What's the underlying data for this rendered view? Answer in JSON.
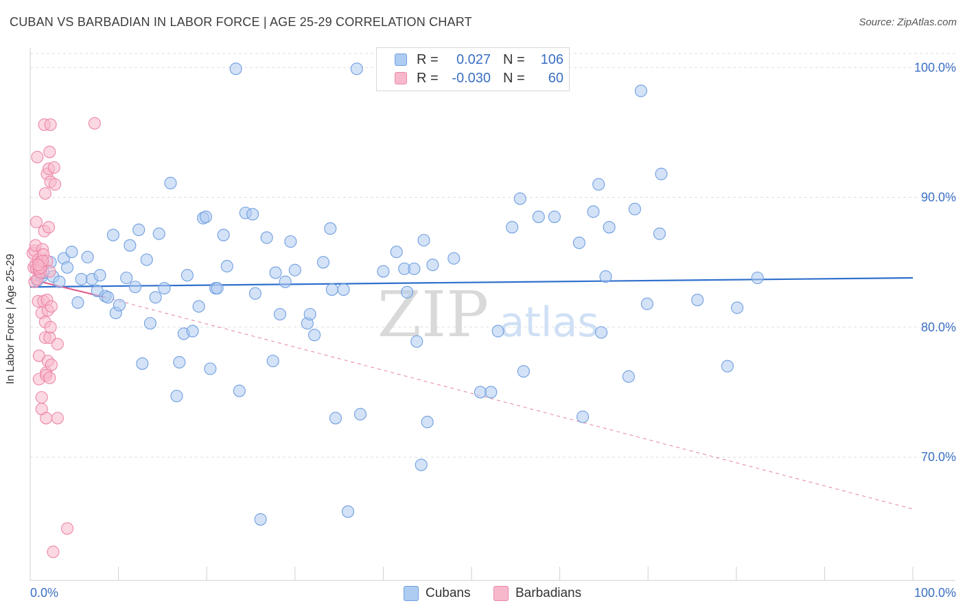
{
  "title": "CUBAN VS BARBADIAN IN LABOR FORCE | AGE 25-29 CORRELATION CHART",
  "source": "Source: ZipAtlas.com",
  "watermark": {
    "zip": "ZIP",
    "atlas": "atlas"
  },
  "legend": {
    "rows": [
      {
        "r_label": "R =",
        "r_value": "0.027",
        "n_label": "N =",
        "n_value": "106"
      },
      {
        "r_label": "R =",
        "r_value": "-0.030",
        "n_label": "N =",
        "n_value": "60"
      }
    ]
  },
  "bottom_legend": {
    "series1": "Cubans",
    "series2": "Barbadians"
  },
  "colors": {
    "cuban_fill": "#aecbf1",
    "cuban_stroke": "#6f9ee0",
    "cuban_line": "#2f6fcc",
    "barb_fill": "#f7b8cb",
    "barb_stroke": "#ec87a8",
    "barb_line": "#e0608a",
    "grid": "#dddddd",
    "axis_text": "#3a6fc4"
  },
  "chart_data": {
    "type": "scatter",
    "title": "CUBAN VS BARBADIAN IN LABOR FORCE | AGE 25-29 CORRELATION CHART",
    "xlabel": "",
    "ylabel": "In Labor Force | Age 25-29",
    "xlim": [
      0,
      100
    ],
    "ylim": [
      60.5,
      101.5
    ],
    "x_tick_labels": [
      "0.0%",
      "100.0%"
    ],
    "y_ticks": [
      70,
      80,
      90,
      100
    ],
    "y_tick_labels": [
      "70.0%",
      "80.0%",
      "90.0%",
      "100.0%"
    ],
    "grid": true,
    "series": [
      {
        "name": "Cubans",
        "R": 0.027,
        "N": 106,
        "trend": {
          "x": [
            0,
            100
          ],
          "y": [
            83.1,
            83.8
          ]
        },
        "points": [
          [
            0.8,
            83.6
          ],
          [
            1.0,
            84.5
          ],
          [
            1.1,
            84.1
          ],
          [
            1.2,
            84.3
          ],
          [
            1.2,
            84.4
          ],
          [
            1.3,
            83.9
          ],
          [
            1.5,
            84.2
          ],
          [
            2.3,
            85.0
          ],
          [
            2.6,
            83.9
          ],
          [
            3.3,
            83.5
          ],
          [
            3.8,
            85.3
          ],
          [
            4.2,
            84.6
          ],
          [
            4.7,
            85.8
          ],
          [
            5.4,
            81.9
          ],
          [
            5.8,
            83.7
          ],
          [
            6.5,
            85.4
          ],
          [
            7.0,
            83.7
          ],
          [
            7.6,
            82.8
          ],
          [
            7.9,
            84.0
          ],
          [
            8.5,
            82.4
          ],
          [
            8.8,
            82.3
          ],
          [
            9.4,
            87.1
          ],
          [
            9.7,
            81.1
          ],
          [
            10.1,
            81.7
          ],
          [
            10.9,
            83.8
          ],
          [
            11.3,
            86.3
          ],
          [
            11.9,
            83.1
          ],
          [
            12.3,
            87.5
          ],
          [
            12.7,
            77.2
          ],
          [
            13.2,
            85.2
          ],
          [
            13.6,
            80.3
          ],
          [
            14.2,
            82.3
          ],
          [
            14.6,
            87.2
          ],
          [
            15.2,
            83.0
          ],
          [
            15.9,
            91.1
          ],
          [
            16.6,
            74.7
          ],
          [
            16.9,
            77.3
          ],
          [
            17.4,
            79.5
          ],
          [
            17.8,
            84.0
          ],
          [
            18.4,
            79.7
          ],
          [
            19.1,
            81.6
          ],
          [
            19.6,
            88.4
          ],
          [
            19.9,
            88.5
          ],
          [
            20.4,
            76.8
          ],
          [
            21.0,
            83.0
          ],
          [
            21.2,
            83.0
          ],
          [
            21.9,
            87.1
          ],
          [
            22.3,
            84.7
          ],
          [
            23.3,
            99.9
          ],
          [
            23.7,
            75.1
          ],
          [
            24.4,
            88.8
          ],
          [
            25.2,
            88.7
          ],
          [
            25.5,
            82.6
          ],
          [
            26.1,
            65.2
          ],
          [
            26.8,
            86.9
          ],
          [
            27.5,
            77.4
          ],
          [
            27.8,
            84.2
          ],
          [
            28.3,
            81.0
          ],
          [
            28.9,
            83.5
          ],
          [
            29.5,
            86.6
          ],
          [
            30.0,
            84.4
          ],
          [
            31.4,
            80.3
          ],
          [
            31.7,
            81.0
          ],
          [
            32.2,
            79.4
          ],
          [
            33.2,
            85.0
          ],
          [
            34.0,
            87.6
          ],
          [
            34.2,
            82.9
          ],
          [
            34.6,
            73.0
          ],
          [
            35.5,
            82.9
          ],
          [
            36.0,
            65.8
          ],
          [
            37.0,
            99.9
          ],
          [
            37.4,
            73.3
          ],
          [
            40.0,
            84.3
          ],
          [
            41.5,
            85.8
          ],
          [
            42.4,
            84.5
          ],
          [
            42.7,
            82.7
          ],
          [
            43.5,
            84.5
          ],
          [
            43.8,
            78.9
          ],
          [
            44.3,
            69.4
          ],
          [
            44.6,
            86.7
          ],
          [
            45.0,
            72.7
          ],
          [
            45.6,
            84.8
          ],
          [
            48.0,
            85.3
          ],
          [
            51.0,
            75.0
          ],
          [
            52.2,
            75.0
          ],
          [
            53.0,
            79.7
          ],
          [
            54.6,
            87.7
          ],
          [
            55.5,
            89.9
          ],
          [
            55.9,
            76.6
          ],
          [
            57.6,
            88.5
          ],
          [
            59.4,
            88.5
          ],
          [
            62.2,
            86.5
          ],
          [
            62.6,
            73.1
          ],
          [
            63.8,
            88.9
          ],
          [
            64.4,
            91.0
          ],
          [
            64.7,
            79.6
          ],
          [
            65.2,
            83.9
          ],
          [
            65.6,
            87.7
          ],
          [
            67.8,
            76.2
          ],
          [
            68.5,
            89.1
          ],
          [
            69.2,
            98.2
          ],
          [
            69.9,
            81.8
          ],
          [
            71.3,
            87.2
          ],
          [
            71.5,
            91.8
          ],
          [
            75.6,
            82.1
          ],
          [
            79.0,
            77.0
          ],
          [
            80.1,
            81.5
          ],
          [
            82.4,
            83.8
          ]
        ]
      },
      {
        "name": "Barbadians",
        "R": -0.03,
        "N": 60,
        "trend": {
          "x": [
            0,
            8.5,
            100
          ],
          "y": [
            83.7,
            82.3,
            66.0
          ]
        },
        "points": [
          [
            0.3,
            85.7
          ],
          [
            0.4,
            84.6
          ],
          [
            0.5,
            83.5
          ],
          [
            0.5,
            85.9
          ],
          [
            0.6,
            86.3
          ],
          [
            0.6,
            84.8
          ],
          [
            0.7,
            88.1
          ],
          [
            0.7,
            84.5
          ],
          [
            0.8,
            83.7
          ],
          [
            0.8,
            93.1
          ],
          [
            0.9,
            82.0
          ],
          [
            0.9,
            85.2
          ],
          [
            1.0,
            84.3
          ],
          [
            1.0,
            84.7
          ],
          [
            1.0,
            77.8
          ],
          [
            1.0,
            76.0
          ],
          [
            1.1,
            85.0
          ],
          [
            1.2,
            84.2
          ],
          [
            1.3,
            81.1
          ],
          [
            1.3,
            74.6
          ],
          [
            1.3,
            73.7
          ],
          [
            1.4,
            86.0
          ],
          [
            1.4,
            84.8
          ],
          [
            1.5,
            85.6
          ],
          [
            1.5,
            82.0
          ],
          [
            1.6,
            95.6
          ],
          [
            1.6,
            87.4
          ],
          [
            1.7,
            90.3
          ],
          [
            1.7,
            80.4
          ],
          [
            1.7,
            79.2
          ],
          [
            1.8,
            76.5
          ],
          [
            1.8,
            76.3
          ],
          [
            1.8,
            73.0
          ],
          [
            1.9,
            91.8
          ],
          [
            1.9,
            85.1
          ],
          [
            1.9,
            82.1
          ],
          [
            2.0,
            81.3
          ],
          [
            2.0,
            77.4
          ],
          [
            2.1,
            92.2
          ],
          [
            2.1,
            87.7
          ],
          [
            2.2,
            84.3
          ],
          [
            2.2,
            93.5
          ],
          [
            2.2,
            79.2
          ],
          [
            2.2,
            76.1
          ],
          [
            2.3,
            95.6
          ],
          [
            2.3,
            91.2
          ],
          [
            2.3,
            80.0
          ],
          [
            2.4,
            81.6
          ],
          [
            2.4,
            77.1
          ],
          [
            2.7,
            92.3
          ],
          [
            2.8,
            91.0
          ],
          [
            3.1,
            78.7
          ],
          [
            3.1,
            73.0
          ],
          [
            4.2,
            64.5
          ],
          [
            2.6,
            62.7
          ],
          [
            7.3,
            95.7
          ],
          [
            1.0,
            84.5
          ],
          [
            1.2,
            84.6
          ],
          [
            1.4,
            85.1
          ],
          [
            0.9,
            84.8
          ]
        ]
      }
    ]
  }
}
